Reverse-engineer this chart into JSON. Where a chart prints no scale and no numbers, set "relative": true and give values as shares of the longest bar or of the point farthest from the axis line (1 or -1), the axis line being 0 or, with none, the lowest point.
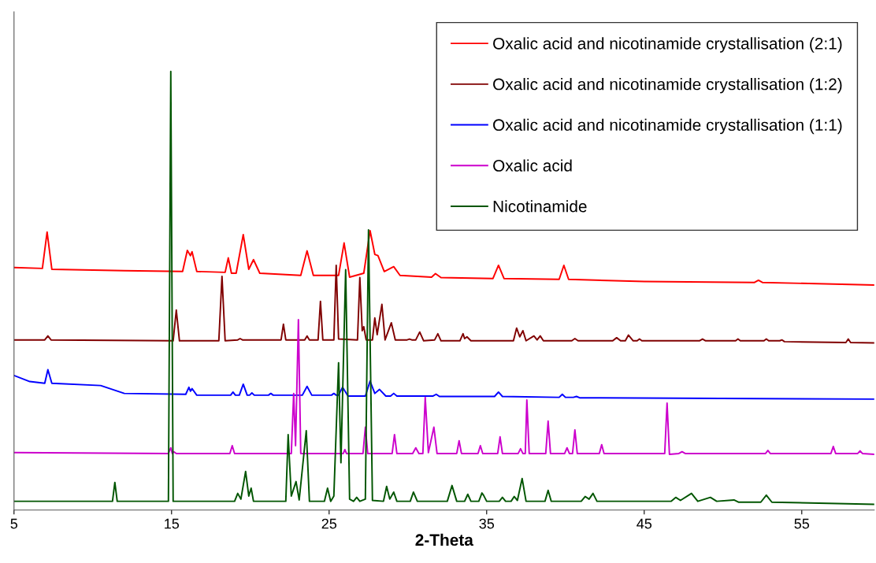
{
  "chart_data": {
    "type": "line",
    "xlabel": "2-Theta",
    "relative": true,
    "legend": "top right",
    "xlim": [
      5,
      59.6
    ],
    "xticks": [
      5,
      15,
      25,
      35,
      45,
      55
    ],
    "series": [
      {
        "name": "Oxalic acid and nicotinamide crystallisation (2:1)",
        "color": "#ff0000",
        "x": [
          5,
          6.8,
          7.1,
          7.4,
          12,
          15.7,
          16.0,
          16.2,
          16.3,
          16.6,
          18.4,
          18.6,
          18.8,
          19.1,
          19.55,
          19.9,
          20.2,
          20.6,
          23.2,
          23.6,
          24.0,
          25.6,
          25.95,
          26.3,
          27.2,
          27.6,
          27.9,
          28.1,
          28.5,
          29.1,
          29.5,
          31.5,
          31.75,
          32.1,
          35.4,
          35.75,
          36.1,
          39.6,
          39.9,
          40.2,
          45,
          52.0,
          52.25,
          52.5,
          59.6
        ],
        "values": [
          0.553,
          0.551,
          0.634,
          0.549,
          0.546,
          0.544,
          0.592,
          0.58,
          0.589,
          0.544,
          0.542,
          0.575,
          0.54,
          0.54,
          0.628,
          0.549,
          0.571,
          0.54,
          0.535,
          0.591,
          0.535,
          0.535,
          0.609,
          0.531,
          0.54,
          0.637,
          0.583,
          0.58,
          0.544,
          0.555,
          0.535,
          0.531,
          0.539,
          0.53,
          0.528,
          0.558,
          0.528,
          0.526,
          0.558,
          0.526,
          0.521,
          0.519,
          0.524,
          0.519,
          0.513
        ]
      },
      {
        "name": "Oxalic acid and nicotinamide crystallisation (1:2)",
        "color": "#800000",
        "x": [
          5,
          6.95,
          7.15,
          7.35,
          15.1,
          15.3,
          15.5,
          18.0,
          18.2,
          18.4,
          19.2,
          19.35,
          19.5,
          21.95,
          22.1,
          22.25,
          23.45,
          23.6,
          23.75,
          24.3,
          24.45,
          24.6,
          25.3,
          25.45,
          25.6,
          26.8,
          26.95,
          27.1,
          27.2,
          27.35,
          27.75,
          27.9,
          28.05,
          28.35,
          28.55,
          28.95,
          29.2,
          29.95,
          30.1,
          30.25,
          30.5,
          30.75,
          31.0,
          31.7,
          31.9,
          32.1,
          33.3,
          33.5,
          33.6,
          33.75,
          34.0,
          36.7,
          36.9,
          37.1,
          37.3,
          37.5,
          38.0,
          38.2,
          38.4,
          38.6,
          40.4,
          40.6,
          40.8,
          43.0,
          43.25,
          43.5,
          43.8,
          44.0,
          44.3,
          44.55,
          44.7,
          44.85,
          48.5,
          48.7,
          48.9,
          50.8,
          50.95,
          51.1,
          52.6,
          52.75,
          52.9,
          53.6,
          53.75,
          53.9,
          57.8,
          57.95,
          58.1,
          59.6
        ],
        "values": [
          0.388,
          0.388,
          0.397,
          0.388,
          0.386,
          0.456,
          0.386,
          0.386,
          0.533,
          0.386,
          0.388,
          0.391,
          0.388,
          0.388,
          0.424,
          0.388,
          0.388,
          0.397,
          0.388,
          0.388,
          0.476,
          0.388,
          0.388,
          0.558,
          0.39,
          0.388,
          0.53,
          0.409,
          0.418,
          0.388,
          0.388,
          0.438,
          0.4,
          0.469,
          0.388,
          0.427,
          0.388,
          0.388,
          0.39,
          0.388,
          0.388,
          0.406,
          0.386,
          0.388,
          0.402,
          0.386,
          0.386,
          0.402,
          0.391,
          0.395,
          0.386,
          0.386,
          0.415,
          0.395,
          0.409,
          0.386,
          0.397,
          0.388,
          0.397,
          0.386,
          0.386,
          0.391,
          0.386,
          0.386,
          0.393,
          0.386,
          0.386,
          0.399,
          0.386,
          0.386,
          0.39,
          0.386,
          0.386,
          0.39,
          0.386,
          0.386,
          0.39,
          0.386,
          0.386,
          0.39,
          0.386,
          0.386,
          0.388,
          0.384,
          0.382,
          0.39,
          0.382,
          0.381
        ]
      },
      {
        "name": "Oxalic acid and nicotinamide crystallisation (1:1)",
        "color": "#0000ff",
        "x": [
          5,
          6.0,
          6.95,
          7.15,
          7.4,
          10.5,
          12.0,
          15.9,
          16.1,
          16.2,
          16.3,
          16.6,
          18.75,
          18.9,
          19.05,
          19.3,
          19.55,
          19.8,
          19.95,
          20.1,
          20.25,
          21.15,
          21.3,
          21.45,
          23.3,
          23.6,
          23.9,
          25.15,
          25.3,
          25.45,
          25.6,
          25.85,
          26.2,
          27.3,
          27.6,
          27.9,
          28.2,
          28.6,
          28.9,
          29.1,
          29.3,
          31.6,
          31.8,
          32.0,
          35.5,
          35.75,
          36.0,
          39.6,
          39.8,
          40.0,
          40.5,
          40.7,
          40.9,
          59.6
        ],
        "values": [
          0.307,
          0.293,
          0.289,
          0.32,
          0.289,
          0.284,
          0.266,
          0.264,
          0.28,
          0.271,
          0.277,
          0.262,
          0.262,
          0.269,
          0.262,
          0.262,
          0.287,
          0.262,
          0.262,
          0.267,
          0.262,
          0.262,
          0.266,
          0.262,
          0.262,
          0.282,
          0.262,
          0.262,
          0.266,
          0.262,
          0.262,
          0.28,
          0.26,
          0.26,
          0.294,
          0.266,
          0.275,
          0.26,
          0.26,
          0.266,
          0.26,
          0.26,
          0.264,
          0.259,
          0.259,
          0.269,
          0.259,
          0.257,
          0.264,
          0.257,
          0.257,
          0.259,
          0.256,
          0.253
        ]
      },
      {
        "name": "Oxalic acid",
        "color": "#cc00cc",
        "x": [
          5,
          14.8,
          14.95,
          15.05,
          15.15,
          15.3,
          18.7,
          18.85,
          19.0,
          22.6,
          22.75,
          22.87,
          23.05,
          23.2,
          25.9,
          26.0,
          26.1,
          27.15,
          27.3,
          27.45,
          29.0,
          29.15,
          29.3,
          30.3,
          30.5,
          30.7,
          30.95,
          31.1,
          31.3,
          31.65,
          31.85,
          33.1,
          33.25,
          33.4,
          34.45,
          34.6,
          34.75,
          35.7,
          35.85,
          36.0,
          37.0,
          37.15,
          37.3,
          37.45,
          37.55,
          37.7,
          38.75,
          38.9,
          39.05,
          39.95,
          40.1,
          40.25,
          40.45,
          40.6,
          40.75,
          42.15,
          42.3,
          42.45,
          46.3,
          46.45,
          46.6,
          47.2,
          47.4,
          47.6,
          52.7,
          52.85,
          53.0,
          56.85,
          57.0,
          57.15,
          58.55,
          58.7,
          58.85,
          59.6
        ],
        "values": [
          0.131,
          0.129,
          0.142,
          0.129,
          0.133,
          0.129,
          0.129,
          0.147,
          0.129,
          0.129,
          0.266,
          0.147,
          0.434,
          0.129,
          0.129,
          0.138,
          0.129,
          0.129,
          0.189,
          0.129,
          0.129,
          0.172,
          0.129,
          0.129,
          0.142,
          0.129,
          0.129,
          0.257,
          0.131,
          0.189,
          0.129,
          0.129,
          0.158,
          0.129,
          0.129,
          0.147,
          0.129,
          0.129,
          0.167,
          0.129,
          0.129,
          0.14,
          0.129,
          0.129,
          0.251,
          0.129,
          0.129,
          0.203,
          0.129,
          0.129,
          0.142,
          0.129,
          0.129,
          0.183,
          0.129,
          0.129,
          0.149,
          0.129,
          0.129,
          0.244,
          0.127,
          0.129,
          0.133,
          0.129,
          0.129,
          0.136,
          0.129,
          0.129,
          0.145,
          0.129,
          0.129,
          0.135,
          0.129,
          0.127
        ]
      },
      {
        "name": "Nicotinamide",
        "color": "#005500",
        "x": [
          5,
          11.25,
          11.4,
          11.55,
          14.8,
          14.95,
          15.1,
          19.0,
          19.2,
          19.4,
          19.7,
          19.9,
          20.05,
          20.2,
          22.25,
          22.4,
          22.6,
          22.9,
          23.1,
          23.55,
          23.75,
          24.7,
          24.9,
          25.1,
          25.3,
          25.6,
          25.75,
          26.05,
          26.3,
          26.55,
          26.75,
          26.95,
          27.3,
          27.5,
          27.75,
          28.45,
          28.65,
          28.85,
          29.1,
          29.3,
          30.15,
          30.35,
          30.6,
          32.5,
          32.8,
          33.1,
          33.6,
          33.8,
          34.0,
          34.5,
          34.7,
          34.8,
          35.0,
          35.8,
          36.0,
          36.2,
          36.55,
          36.75,
          36.95,
          37.25,
          37.5,
          38.7,
          38.9,
          39.1,
          41.0,
          41.25,
          41.5,
          41.75,
          42.0,
          46.7,
          47.0,
          47.3,
          48.0,
          48.4,
          49.2,
          49.6,
          50.7,
          51.0,
          52.4,
          52.75,
          53.1,
          59.6
        ],
        "values": [
          0.02,
          0.02,
          0.063,
          0.02,
          0.02,
          1.0,
          0.02,
          0.02,
          0.038,
          0.025,
          0.088,
          0.032,
          0.05,
          0.02,
          0.02,
          0.172,
          0.032,
          0.065,
          0.023,
          0.181,
          0.02,
          0.02,
          0.05,
          0.02,
          0.032,
          0.336,
          0.108,
          0.548,
          0.025,
          0.02,
          0.029,
          0.02,
          0.025,
          0.639,
          0.022,
          0.02,
          0.054,
          0.025,
          0.041,
          0.02,
          0.02,
          0.041,
          0.02,
          0.02,
          0.056,
          0.02,
          0.02,
          0.036,
          0.02,
          0.02,
          0.039,
          0.034,
          0.02,
          0.02,
          0.029,
          0.02,
          0.02,
          0.031,
          0.022,
          0.072,
          0.02,
          0.02,
          0.045,
          0.02,
          0.02,
          0.031,
          0.025,
          0.038,
          0.02,
          0.02,
          0.029,
          0.022,
          0.038,
          0.02,
          0.029,
          0.02,
          0.023,
          0.018,
          0.018,
          0.034,
          0.018,
          0.013
        ]
      }
    ]
  }
}
